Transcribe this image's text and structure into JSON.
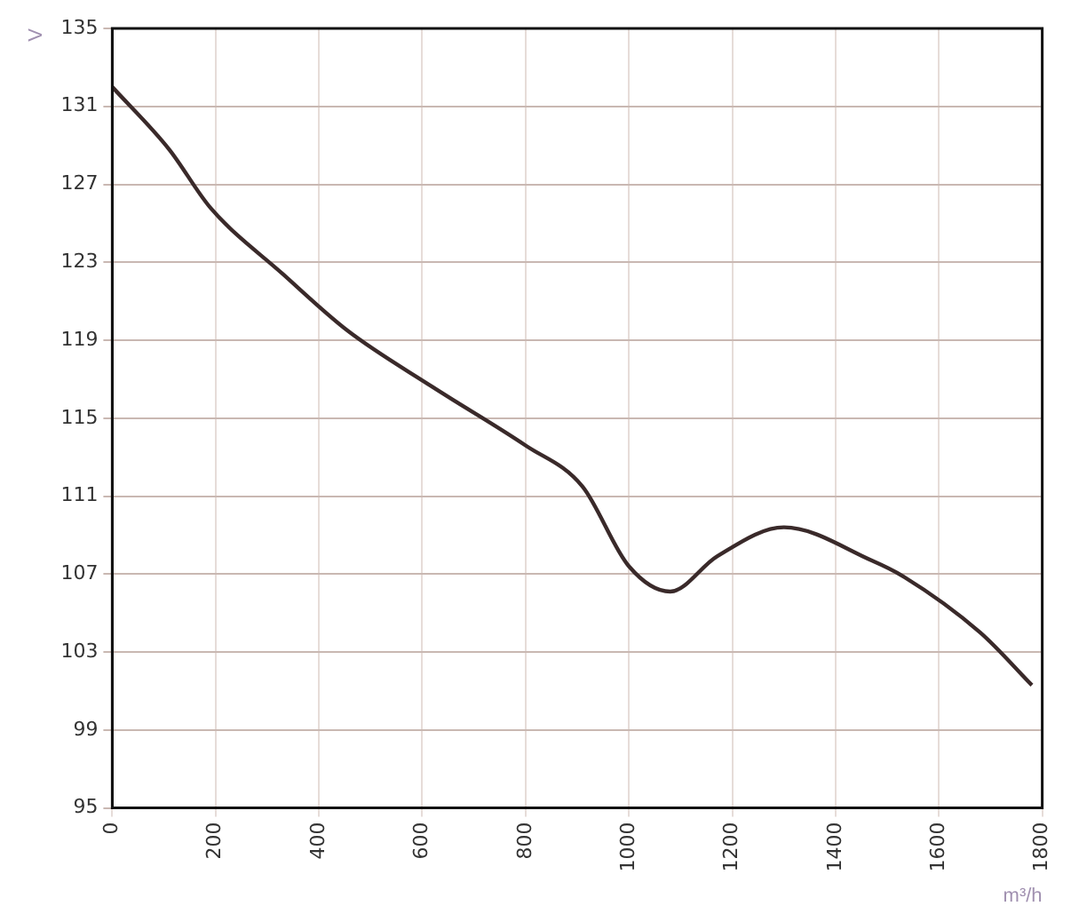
{
  "chart_data": {
    "type": "line",
    "ylabel": "V",
    "xlabel": "m³/h",
    "x": [
      0,
      110,
      190,
      330,
      455,
      620,
      800,
      910,
      1000,
      1080,
      1170,
      1300,
      1470,
      1530,
      1680,
      1780
    ],
    "series": [
      {
        "color": "#3a2a2a",
        "values": [
          132.0,
          128.8,
          125.8,
          122.4,
          119.5,
          116.6,
          113.6,
          111.5,
          107.4,
          106.1,
          107.9,
          109.4,
          107.7,
          106.9,
          104.0,
          101.3
        ]
      }
    ],
    "xlim": [
      0,
      1800
    ],
    "xticks": [
      0,
      200,
      400,
      600,
      800,
      1000,
      1200,
      1400,
      1600,
      1800
    ],
    "ylim": [
      95,
      135
    ],
    "yticks": [
      95,
      99,
      103,
      107,
      111,
      115,
      119,
      123,
      127,
      131,
      135
    ],
    "grid": true,
    "legend": false,
    "marker": "none",
    "line_style": "solid"
  }
}
